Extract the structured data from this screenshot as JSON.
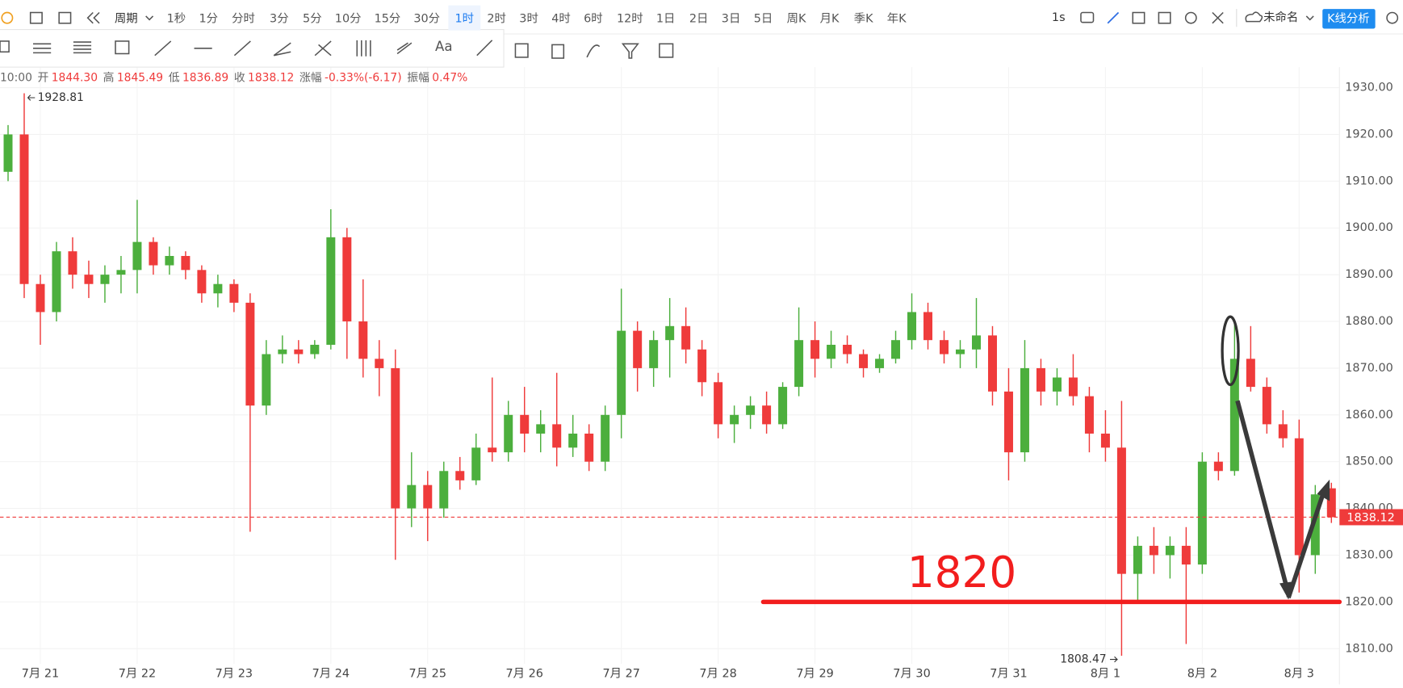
{
  "toolbar": {
    "period_label": "周期",
    "periods": [
      "1秒",
      "1分",
      "分时",
      "3分",
      "5分",
      "10分",
      "15分",
      "30分",
      "1时",
      "2时",
      "3时",
      "4时",
      "6时",
      "12时",
      "1日",
      "2日",
      "3日",
      "5日",
      "周K",
      "月K",
      "季K",
      "年K"
    ],
    "active": 8,
    "refresh": "1s",
    "workspace": "未命名",
    "analysis_button": "K线分析",
    "text_tool": "Aa"
  },
  "info_bar": {
    "time": "10:00",
    "items": [
      {
        "label": "开",
        "value": "1844.30"
      },
      {
        "label": "高",
        "value": "1845.49"
      },
      {
        "label": "低",
        "value": "1836.89"
      },
      {
        "label": "收",
        "value": "1838.12"
      },
      {
        "label": "涨幅",
        "value": "-0.33%(-6.17)"
      },
      {
        "label": "振幅",
        "value": "0.47%"
      }
    ]
  },
  "chart_data": {
    "type": "candlestick",
    "categories": [
      null,
      null,
      "7月 21",
      null,
      null,
      null,
      null,
      null,
      "7月 22",
      null,
      null,
      null,
      null,
      null,
      "7月 23",
      null,
      null,
      null,
      null,
      null,
      "7月 24",
      null,
      null,
      null,
      null,
      null,
      "7月 25",
      null,
      null,
      null,
      null,
      null,
      "7月 26",
      null,
      null,
      null,
      null,
      null,
      "7月 27",
      null,
      null,
      null,
      null,
      null,
      "7月 28",
      null,
      null,
      null,
      null,
      null,
      "7月 29",
      null,
      null,
      null,
      null,
      null,
      "7月 30",
      null,
      null,
      null,
      null,
      null,
      "7月 31",
      null,
      null,
      null,
      null,
      null,
      "8月 1",
      null,
      null,
      null,
      null,
      null,
      "8月 2",
      null,
      null,
      null,
      null,
      null,
      "8月 3",
      null,
      null
    ],
    "open": [
      1912,
      1920,
      1888,
      1882,
      1895,
      1890,
      1888,
      1890,
      1891,
      1897,
      1892,
      1894,
      1891,
      1886,
      1888,
      1884,
      1862,
      1873,
      1874,
      1873,
      1875,
      1898,
      1880,
      1872,
      1870,
      1840,
      1845,
      1840,
      1848,
      1846,
      1853,
      1852,
      1860,
      1856,
      1858,
      1853,
      1856,
      1850,
      1860,
      1878,
      1870,
      1876,
      1879,
      1874,
      1867,
      1858,
      1860,
      1862,
      1858,
      1866,
      1876,
      1872,
      1875,
      1873,
      1870,
      1872,
      1876,
      1882,
      1876,
      1873,
      1874,
      1877,
      1865,
      1852,
      1870,
      1865,
      1868,
      1864,
      1856,
      1853,
      1826,
      1832,
      1830,
      1832,
      1828,
      1850,
      1848,
      1872,
      1866,
      1858,
      1855,
      1830,
      1844.3
    ],
    "high": [
      1922,
      1928.81,
      1890,
      1897,
      1898,
      1893,
      1892,
      1894,
      1906,
      1898,
      1896,
      1895,
      1892,
      1890,
      1889,
      1886,
      1876,
      1877,
      1876,
      1876,
      1904,
      1900,
      1889,
      1876,
      1874,
      1852,
      1848,
      1850,
      1851,
      1856,
      1868,
      1863,
      1866,
      1861,
      1869,
      1860,
      1858,
      1862,
      1887,
      1880,
      1878,
      1885,
      1883,
      1876,
      1869,
      1862,
      1864,
      1865,
      1867,
      1883,
      1880,
      1878,
      1877,
      1874,
      1873,
      1878,
      1886,
      1884,
      1878,
      1876,
      1885,
      1879,
      1870,
      1876,
      1872,
      1870,
      1873,
      1866,
      1861,
      1863,
      1834,
      1836,
      1834,
      1836,
      1852,
      1852,
      1880,
      1879,
      1868,
      1861,
      1859,
      1845,
      1845.49
    ],
    "low": [
      1910,
      1885,
      1875,
      1880,
      1887,
      1885,
      1884,
      1886,
      1886,
      1890,
      1890,
      1889,
      1884,
      1883,
      1882,
      1835,
      1860,
      1871,
      1871,
      1872,
      1874,
      1872,
      1868,
      1864,
      1829,
      1836,
      1833,
      1838,
      1844,
      1845,
      1850,
      1850,
      1852,
      1852,
      1849,
      1851,
      1848,
      1848,
      1855,
      1865,
      1866,
      1868,
      1871,
      1864,
      1855,
      1854,
      1857,
      1856,
      1857,
      1864,
      1868,
      1870,
      1871,
      1868,
      1869,
      1871,
      1874,
      1874,
      1871,
      1870,
      1870,
      1862,
      1846,
      1850,
      1862,
      1862,
      1862,
      1852,
      1850,
      1808.47,
      1820,
      1826,
      1825,
      1811,
      1826,
      1846,
      1847,
      1865,
      1856,
      1853,
      1822,
      1826,
      1836.89
    ],
    "close": [
      1920,
      1888,
      1882,
      1895,
      1890,
      1888,
      1890,
      1891,
      1897,
      1892,
      1894,
      1891,
      1886,
      1888,
      1884,
      1862,
      1873,
      1874,
      1873,
      1875,
      1898,
      1880,
      1872,
      1870,
      1840,
      1845,
      1840,
      1848,
      1846,
      1853,
      1852,
      1860,
      1856,
      1858,
      1853,
      1856,
      1850,
      1860,
      1878,
      1870,
      1876,
      1879,
      1874,
      1867,
      1858,
      1860,
      1862,
      1858,
      1866,
      1876,
      1872,
      1875,
      1873,
      1870,
      1872,
      1876,
      1882,
      1876,
      1873,
      1874,
      1877,
      1865,
      1852,
      1870,
      1865,
      1868,
      1864,
      1856,
      1853,
      1826,
      1832,
      1830,
      1832,
      1828,
      1850,
      1848,
      1872,
      1866,
      1858,
      1855,
      1830,
      1843,
      1838.12
    ],
    "up_color": "#4caf3d",
    "down_color": "#ef3b3b",
    "ylim": [
      1806.75,
      1934.4
    ],
    "yticks": [
      {
        "value": 1810,
        "label": "1810.00"
      },
      {
        "value": 1820,
        "label": "1820.00"
      },
      {
        "value": 1830,
        "label": "1830.00"
      },
      {
        "value": 1840,
        "label": "1840.00"
      },
      {
        "value": 1850,
        "label": "1850.00"
      },
      {
        "value": 1860,
        "label": "1860.00"
      },
      {
        "value": 1870,
        "label": "1870.00"
      },
      {
        "value": 1880,
        "label": "1880.00"
      },
      {
        "value": 1890,
        "label": "1890.00"
      },
      {
        "value": 1900,
        "label": "1900.00"
      },
      {
        "value": 1910,
        "label": "1910.00"
      },
      {
        "value": 1920,
        "label": "1920.00"
      },
      {
        "value": 1930,
        "label": "1930.00"
      }
    ],
    "grid": true,
    "annotations": [
      {
        "label": "1820",
        "value": 1820,
        "color": "#f21d1d"
      }
    ]
  }
}
